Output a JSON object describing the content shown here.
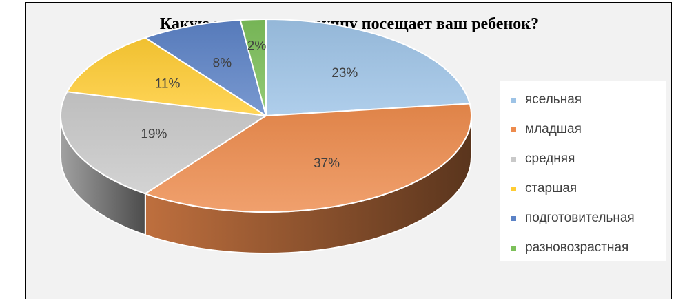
{
  "chart_data": {
    "type": "pie",
    "title": "Какую возрастную группу посещает ваш ребенок?",
    "categories": [
      "ясельная",
      "младшая",
      "средняя",
      "старшая",
      "подготовительная",
      "разновозрастная"
    ],
    "values": [
      23,
      37,
      19,
      11,
      8,
      2
    ],
    "labels": [
      "23%",
      "37%",
      "19%",
      "11%",
      "8%",
      "2%"
    ],
    "colors": [
      "#9dc3e6",
      "#ed8b4d",
      "#c9c9c9",
      "#ffcc33",
      "#5b82c6",
      "#7cc05a"
    ],
    "legend_position": "right"
  }
}
